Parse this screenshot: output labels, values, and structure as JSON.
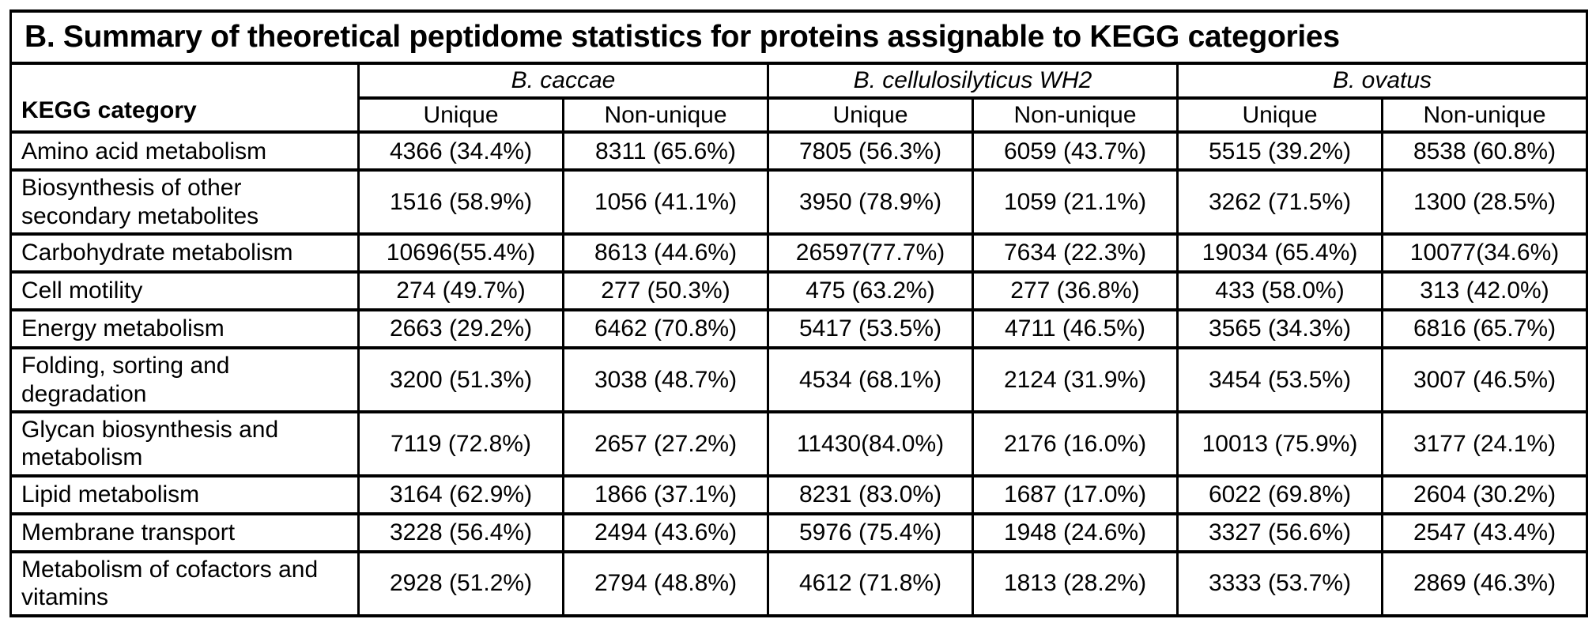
{
  "title": "B. Summary of theoretical peptidome statistics for proteins assignable to KEGG categories",
  "colors": {
    "background": "#ffffff",
    "text": "#000000",
    "border": "#000000"
  },
  "table": {
    "row_header": "KEGG category",
    "groups": [
      "B. caccae",
      "B. cellulosilyticus WH2",
      "B. ovatus"
    ],
    "subheaders": [
      "Unique",
      "Non-unique"
    ],
    "rows": [
      {
        "category": "Amino acid metabolism",
        "values": [
          "4366 (34.4%)",
          "8311 (65.6%)",
          "7805 (56.3%)",
          "6059 (43.7%)",
          "5515 (39.2%)",
          "8538 (60.8%)"
        ]
      },
      {
        "category": "Biosynthesis of other secondary metabolites",
        "values": [
          "1516 (58.9%)",
          "1056 (41.1%)",
          "3950 (78.9%)",
          "1059 (21.1%)",
          "3262 (71.5%)",
          "1300 (28.5%)"
        ]
      },
      {
        "category": "Carbohydrate metabolism",
        "values": [
          "10696(55.4%)",
          "8613 (44.6%)",
          "26597(77.7%)",
          "7634 (22.3%)",
          "19034 (65.4%)",
          "10077(34.6%)"
        ]
      },
      {
        "category": "Cell motility",
        "values": [
          "274 (49.7%)",
          "277 (50.3%)",
          "475 (63.2%)",
          "277 (36.8%)",
          "433 (58.0%)",
          "313 (42.0%)"
        ]
      },
      {
        "category": "Energy metabolism",
        "values": [
          "2663 (29.2%)",
          "6462 (70.8%)",
          "5417 (53.5%)",
          "4711 (46.5%)",
          "3565 (34.3%)",
          "6816 (65.7%)"
        ]
      },
      {
        "category": "Folding, sorting and degradation",
        "values": [
          "3200 (51.3%)",
          "3038 (48.7%)",
          "4534 (68.1%)",
          "2124 (31.9%)",
          "3454 (53.5%)",
          "3007 (46.5%)"
        ]
      },
      {
        "category": "Glycan biosynthesis and metabolism",
        "values": [
          "7119 (72.8%)",
          "2657 (27.2%)",
          "11430(84.0%)",
          "2176 (16.0%)",
          "10013 (75.9%)",
          "3177 (24.1%)"
        ]
      },
      {
        "category": "Lipid metabolism",
        "values": [
          "3164 (62.9%)",
          "1866 (37.1%)",
          "8231 (83.0%)",
          "1687 (17.0%)",
          "6022 (69.8%)",
          "2604 (30.2%)"
        ]
      },
      {
        "category": "Membrane transport",
        "values": [
          "3228 (56.4%)",
          "2494 (43.6%)",
          "5976 (75.4%)",
          "1948 (24.6%)",
          "3327 (56.6%)",
          "2547 (43.4%)"
        ]
      },
      {
        "category": "Metabolism of cofactors and vitamins",
        "values": [
          "2928 (51.2%)",
          "2794 (48.8%)",
          "4612 (71.8%)",
          "1813 (28.2%)",
          "3333 (53.7%)",
          "2869 (46.3%)"
        ]
      }
    ]
  }
}
